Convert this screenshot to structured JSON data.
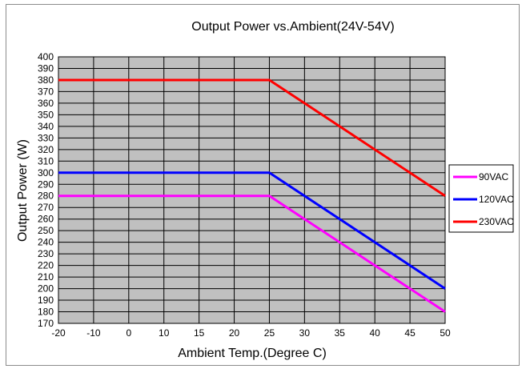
{
  "chart_data": {
    "type": "line",
    "title": "Output Power vs.Ambient(24V-54V)",
    "xlabel": "Ambient Temp.(Degree C)",
    "ylabel": "Output Power (W)",
    "xlim": [
      -20,
      50
    ],
    "ylim": [
      170,
      400
    ],
    "x_ticks": [
      -20,
      -10,
      0,
      10,
      15,
      20,
      25,
      30,
      35,
      40,
      45,
      50
    ],
    "x_tick_labels": [
      "-20",
      "-10",
      "0",
      "10",
      "15",
      "20",
      "25",
      "30",
      "35",
      "40",
      "45",
      "50"
    ],
    "y_ticks": [
      170,
      180,
      190,
      200,
      210,
      220,
      230,
      240,
      250,
      260,
      270,
      280,
      290,
      300,
      310,
      320,
      330,
      340,
      350,
      360,
      370,
      380,
      390,
      400
    ],
    "grid": true,
    "plot_background": "#c0c0c0",
    "legend_position": "right",
    "series": [
      {
        "name": "90VAC",
        "color": "#ff00ff",
        "x": [
          -20,
          25,
          50
        ],
        "y": [
          280,
          280,
          180
        ]
      },
      {
        "name": "120VAC",
        "color": "#0000ff",
        "x": [
          -20,
          25,
          50
        ],
        "y": [
          300,
          300,
          200
        ]
      },
      {
        "name": "230VAC",
        "color": "#ff0000",
        "x": [
          -20,
          25,
          50
        ],
        "y": [
          380,
          380,
          280
        ]
      }
    ]
  }
}
